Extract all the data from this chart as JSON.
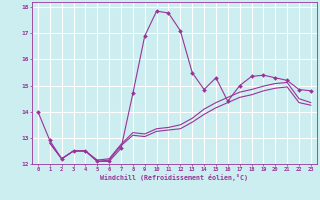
{
  "xlabel": "Windchill (Refroidissement éolien,°C)",
  "xlim": [
    -0.5,
    23.5
  ],
  "ylim": [
    12,
    18.2
  ],
  "yticks": [
    12,
    13,
    14,
    15,
    16,
    17,
    18
  ],
  "xticks": [
    0,
    1,
    2,
    3,
    4,
    5,
    6,
    7,
    8,
    9,
    10,
    11,
    12,
    13,
    14,
    15,
    16,
    17,
    18,
    19,
    20,
    21,
    22,
    23
  ],
  "bg_color": "#cceef0",
  "grid_color": "#ffffff",
  "line_color": "#993399",
  "line1": [
    [
      0,
      14.0
    ],
    [
      1,
      12.9
    ],
    [
      2,
      12.2
    ],
    [
      3,
      12.5
    ],
    [
      4,
      12.5
    ],
    [
      5,
      12.1
    ],
    [
      6,
      12.1
    ],
    [
      7,
      12.6
    ],
    [
      8,
      14.7
    ],
    [
      9,
      16.9
    ],
    [
      10,
      17.85
    ],
    [
      11,
      17.78
    ],
    [
      12,
      17.1
    ],
    [
      13,
      15.5
    ],
    [
      14,
      14.85
    ],
    [
      15,
      15.3
    ],
    [
      16,
      14.4
    ],
    [
      17,
      15.0
    ],
    [
      18,
      15.35
    ],
    [
      19,
      15.4
    ],
    [
      20,
      15.3
    ],
    [
      21,
      15.2
    ],
    [
      22,
      14.85
    ],
    [
      23,
      14.8
    ]
  ],
  "line2": [
    [
      1,
      12.8
    ],
    [
      2,
      12.2
    ],
    [
      3,
      12.5
    ],
    [
      4,
      12.5
    ],
    [
      5,
      12.1
    ],
    [
      6,
      12.15
    ],
    [
      7,
      12.7
    ],
    [
      8,
      13.1
    ],
    [
      9,
      13.05
    ],
    [
      10,
      13.25
    ],
    [
      11,
      13.3
    ],
    [
      12,
      13.35
    ],
    [
      13,
      13.6
    ],
    [
      14,
      13.9
    ],
    [
      15,
      14.15
    ],
    [
      16,
      14.35
    ],
    [
      17,
      14.55
    ],
    [
      18,
      14.65
    ],
    [
      19,
      14.8
    ],
    [
      20,
      14.9
    ],
    [
      21,
      14.95
    ],
    [
      22,
      14.35
    ],
    [
      23,
      14.25
    ]
  ],
  "line3": [
    [
      1,
      12.8
    ],
    [
      2,
      12.2
    ],
    [
      3,
      12.5
    ],
    [
      4,
      12.5
    ],
    [
      5,
      12.15
    ],
    [
      6,
      12.2
    ],
    [
      7,
      12.75
    ],
    [
      8,
      13.2
    ],
    [
      9,
      13.15
    ],
    [
      10,
      13.35
    ],
    [
      11,
      13.4
    ],
    [
      12,
      13.5
    ],
    [
      13,
      13.75
    ],
    [
      14,
      14.1
    ],
    [
      15,
      14.35
    ],
    [
      16,
      14.55
    ],
    [
      17,
      14.75
    ],
    [
      18,
      14.85
    ],
    [
      19,
      14.98
    ],
    [
      20,
      15.08
    ],
    [
      21,
      15.12
    ],
    [
      22,
      14.5
    ],
    [
      23,
      14.35
    ]
  ]
}
